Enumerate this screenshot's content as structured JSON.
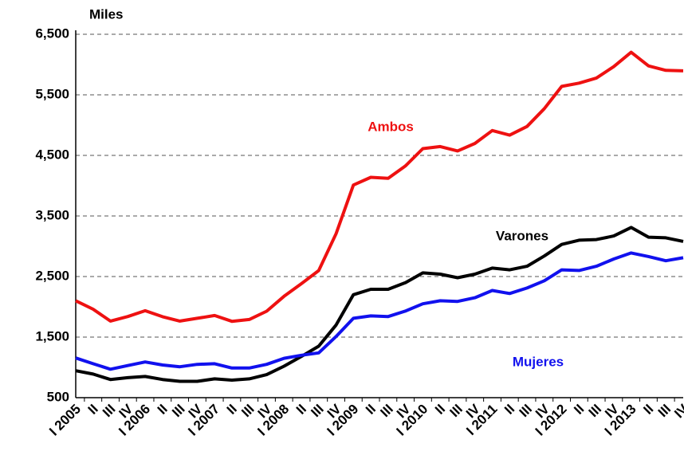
{
  "chart_data": {
    "type": "line",
    "y_axis_label": "Miles",
    "categories": [
      "I 2005",
      "II",
      "III",
      "IV",
      "I 2006",
      "II",
      "III",
      "IV",
      "I 2007",
      "II",
      "III",
      "IV",
      "I 2008",
      "II",
      "III",
      "IV",
      "I 2009",
      "II",
      "III",
      "IV",
      "I 2010",
      "II",
      "III",
      "IV",
      "I 2011",
      "II",
      "III",
      "IV",
      "I 2012",
      "II",
      "III",
      "IV",
      "I 2013",
      "II",
      "III",
      "IV"
    ],
    "series": [
      {
        "name": "Ambos",
        "color": "#ee1111",
        "values": [
          2100,
          1960,
          1765,
          1840,
          1935,
          1837,
          1765,
          1810,
          1856,
          1760,
          1791,
          1927,
          2174,
          2381,
          2599,
          3208,
          4011,
          4138,
          4123,
          4327,
          4612,
          4646,
          4574,
          4697,
          4910,
          4834,
          4978,
          5273,
          5639,
          5693,
          5778,
          5966,
          6202,
          5977,
          5904,
          5896
        ]
      },
      {
        "name": "Varones",
        "color": "#000000",
        "values": [
          945,
          890,
          800,
          830,
          850,
          800,
          770,
          770,
          810,
          790,
          810,
          880,
          1020,
          1180,
          1350,
          1700,
          2200,
          2290,
          2290,
          2400,
          2560,
          2540,
          2480,
          2540,
          2640,
          2610,
          2670,
          2840,
          3030,
          3100,
          3110,
          3170,
          3310,
          3150,
          3140,
          3080
        ]
      },
      {
        "name": "Mujeres",
        "color": "#1111ee",
        "values": [
          1155,
          1060,
          970,
          1030,
          1090,
          1040,
          1010,
          1050,
          1060,
          990,
          990,
          1050,
          1150,
          1200,
          1240,
          1510,
          1810,
          1850,
          1840,
          1930,
          2050,
          2100,
          2090,
          2150,
          2270,
          2220,
          2310,
          2430,
          2610,
          2600,
          2670,
          2790,
          2890,
          2830,
          2760,
          2810
        ]
      }
    ],
    "ylim": [
      500,
      6500
    ],
    "yticks": [
      {
        "value": 500,
        "label": "500"
      },
      {
        "value": 1500,
        "label": "1,500"
      },
      {
        "value": 2500,
        "label": "2,500"
      },
      {
        "value": 3500,
        "label": "3,500"
      },
      {
        "value": 4500,
        "label": "4,500"
      },
      {
        "value": 5500,
        "label": "5,500"
      },
      {
        "value": 6500,
        "label": "6,500"
      }
    ],
    "grid": true
  }
}
